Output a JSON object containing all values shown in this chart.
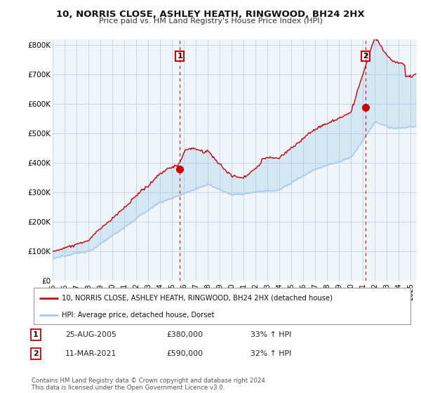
{
  "title": "10, NORRIS CLOSE, ASHLEY HEATH, RINGWOOD, BH24 2HX",
  "subtitle": "Price paid vs. HM Land Registry's House Price Index (HPI)",
  "ylabel_ticks": [
    "£0",
    "£100K",
    "£200K",
    "£300K",
    "£400K",
    "£500K",
    "£600K",
    "£700K",
    "£800K"
  ],
  "ytick_values": [
    0,
    100000,
    200000,
    300000,
    400000,
    500000,
    600000,
    700000,
    800000
  ],
  "ylim": [
    0,
    820000
  ],
  "xlim_start": 1995.0,
  "xlim_end": 2025.5,
  "hpi_color": "#a8c8e8",
  "price_color": "#cc0000",
  "fill_color": "#d0e8f5",
  "marker1_date": 2005.65,
  "marker1_price": 380000,
  "marker1_label": "1",
  "marker2_date": 2021.19,
  "marker2_price": 590000,
  "marker2_label": "2",
  "legend_line1": "10, NORRIS CLOSE, ASHLEY HEATH, RINGWOOD, BH24 2HX (detached house)",
  "legend_line2": "HPI: Average price, detached house, Dorset",
  "note1_label": "1",
  "note1_date": "25-AUG-2005",
  "note1_price": "£380,000",
  "note1_hpi": "33% ↑ HPI",
  "note2_label": "2",
  "note2_date": "11-MAR-2021",
  "note2_price": "£590,000",
  "note2_hpi": "32% ↑ HPI",
  "footer": "Contains HM Land Registry data © Crown copyright and database right 2024.\nThis data is licensed under the Open Government Licence v3.0.",
  "background_color": "#ffffff",
  "plot_bg_color": "#eef5fb",
  "grid_color": "#c8d8e8",
  "xtick_years": [
    1995,
    1996,
    1997,
    1998,
    1999,
    2000,
    2001,
    2002,
    2003,
    2004,
    2005,
    2006,
    2007,
    2008,
    2009,
    2010,
    2011,
    2012,
    2013,
    2014,
    2015,
    2016,
    2017,
    2018,
    2019,
    2020,
    2021,
    2022,
    2023,
    2024,
    2025
  ]
}
